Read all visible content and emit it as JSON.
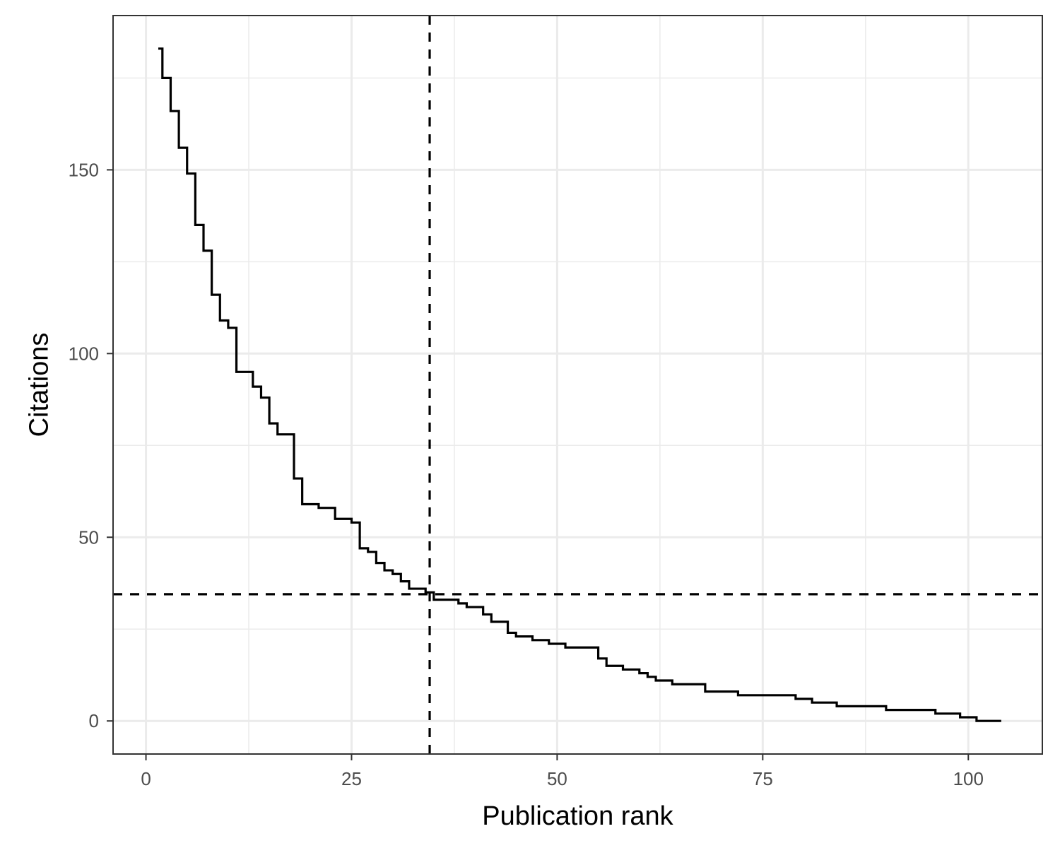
{
  "chart_data": {
    "type": "line",
    "step": true,
    "xlabel": "Publication rank",
    "ylabel": "Citations",
    "xlim": [
      -4,
      109
    ],
    "ylim": [
      -9,
      192
    ],
    "x_ticks": [
      0,
      25,
      50,
      75,
      100
    ],
    "y_ticks": [
      0,
      50,
      100,
      150
    ],
    "x_minor": [
      12.5,
      37.5,
      62.5,
      87.5
    ],
    "y_minor": [
      25,
      75,
      125,
      175
    ],
    "grid": true,
    "legend": "none",
    "series": [
      {
        "color": "#000000",
        "x": [
          1.5,
          2,
          3,
          4,
          5,
          6,
          7,
          8,
          9,
          10,
          11,
          12,
          13,
          14,
          15,
          16,
          17,
          18,
          19,
          20,
          21,
          22,
          23,
          24,
          25,
          26,
          27,
          28,
          29,
          30,
          31,
          32,
          33,
          34,
          35,
          36,
          37,
          38,
          39,
          40,
          41,
          42,
          43,
          44,
          45,
          46,
          47,
          48,
          49,
          50,
          51,
          52,
          53,
          54,
          55,
          56,
          57,
          58,
          59,
          60,
          61,
          62,
          63,
          64,
          65,
          66,
          67,
          68,
          69,
          70,
          71,
          72,
          73,
          74,
          75,
          76,
          77,
          78,
          79,
          80,
          81,
          82,
          83,
          84,
          85,
          86,
          87,
          88,
          89,
          90,
          91,
          92,
          93,
          94,
          95,
          96,
          97,
          98,
          99,
          100,
          101,
          102,
          103,
          104
        ],
        "y": [
          183,
          175,
          166,
          156,
          149,
          135,
          128,
          116,
          109,
          107,
          95,
          95,
          91,
          88,
          81,
          78,
          78,
          66,
          59,
          59,
          58,
          58,
          55,
          55,
          54,
          47,
          46,
          43,
          41,
          40,
          38,
          36,
          36,
          35,
          33,
          33,
          33,
          32,
          31,
          31,
          29,
          27,
          27,
          24,
          23,
          23,
          22,
          22,
          21,
          21,
          20,
          20,
          20,
          20,
          17,
          15,
          15,
          14,
          14,
          13,
          12,
          11,
          11,
          10,
          10,
          10,
          10,
          8,
          8,
          8,
          8,
          7,
          7,
          7,
          7,
          7,
          7,
          7,
          6,
          6,
          5,
          5,
          5,
          4,
          4,
          4,
          4,
          4,
          4,
          3,
          3,
          3,
          3,
          3,
          3,
          2,
          2,
          2,
          1,
          1,
          0,
          0,
          0,
          0
        ]
      }
    ],
    "reference_lines": {
      "vertical_x": 34.5,
      "horizontal_y": 34.5,
      "style": "dashed"
    }
  }
}
